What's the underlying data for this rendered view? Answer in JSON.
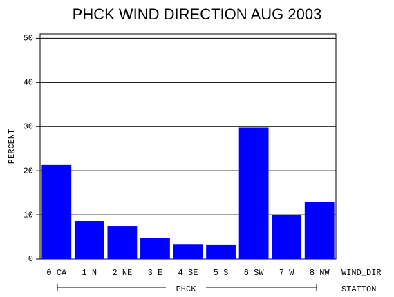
{
  "chart_data": {
    "type": "bar",
    "title": "PHCK WIND DIRECTION AUG 2003",
    "y_label": "PERCENT",
    "x_label": "WIND_DIR",
    "group_axis_label": "STATION",
    "group": "PHCK",
    "categories": [
      "0  CA",
      "1  N",
      "2  NE",
      "3  E",
      "4  SE",
      "5  S",
      "6  SW",
      "7  W",
      "8  NW"
    ],
    "values": [
      21.3,
      8.6,
      7.5,
      4.7,
      3.4,
      3.3,
      29.8,
      9.9,
      12.9
    ],
    "color": "#0000ff",
    "ylim": [
      0,
      51
    ],
    "yticks": [
      0,
      10,
      20,
      30,
      40,
      50
    ],
    "grid": true
  }
}
